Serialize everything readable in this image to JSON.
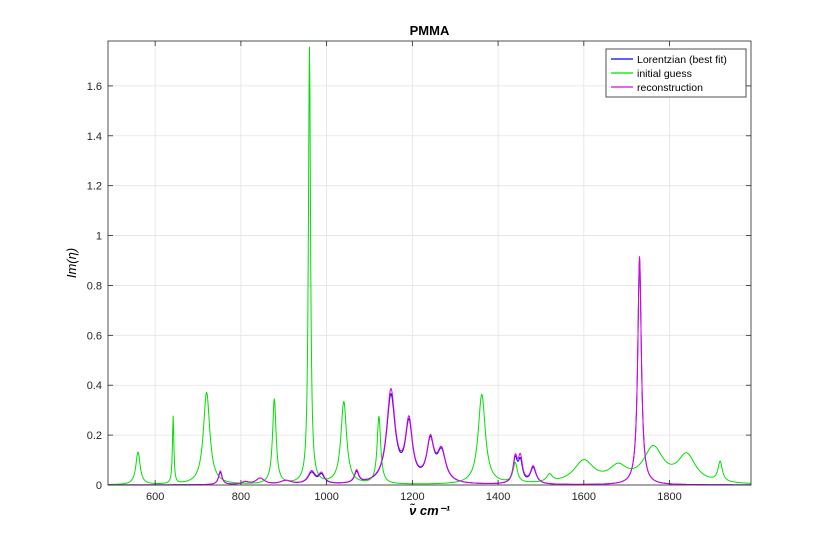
{
  "chart_data": {
    "type": "line",
    "title": "PMMA",
    "xlabel": "ν̃ cm⁻¹",
    "ylabel": "Im(η)",
    "xlim": [
      490,
      1990
    ],
    "ylim": [
      0,
      1.78
    ],
    "xticks": [
      600,
      800,
      1000,
      1200,
      1400,
      1600,
      1800
    ],
    "yticks": [
      0,
      0.2,
      0.4,
      0.6,
      0.8,
      1,
      1.2,
      1.4,
      1.6
    ],
    "ytick_labels": [
      "0",
      "0.2",
      "0.4",
      "0.6",
      "0.8",
      "1",
      "1.2",
      "1.4",
      "1.6"
    ],
    "grid": true,
    "legend_position": "top-right",
    "series": [
      {
        "name": "Lorentzian (best fit)",
        "color": "#0000ff",
        "peaks": [
          [
            752,
            0.05,
            5
          ],
          [
            810,
            0.01,
            10
          ],
          [
            845,
            0.025,
            12
          ],
          [
            905,
            0.015,
            15
          ],
          [
            965,
            0.045,
            10
          ],
          [
            988,
            0.035,
            8
          ],
          [
            1070,
            0.045,
            6
          ],
          [
            1150,
            0.35,
            12
          ],
          [
            1192,
            0.23,
            10
          ],
          [
            1242,
            0.16,
            10
          ],
          [
            1268,
            0.12,
            12
          ],
          [
            1440,
            0.095,
            6
          ],
          [
            1452,
            0.085,
            6
          ],
          [
            1482,
            0.065,
            8
          ],
          [
            1730,
            0.91,
            5
          ]
        ]
      },
      {
        "name": "initial guess",
        "color": "#00e000",
        "peaks": [
          [
            560,
            0.13,
            6
          ],
          [
            642,
            0.27,
            2
          ],
          [
            720,
            0.37,
            9
          ],
          [
            878,
            0.34,
            5
          ],
          [
            960,
            1.75,
            3
          ],
          [
            1040,
            0.33,
            8
          ],
          [
            1122,
            0.27,
            5
          ],
          [
            1362,
            0.36,
            10
          ],
          [
            1440,
            0.08,
            6
          ],
          [
            1520,
            0.03,
            8
          ],
          [
            1600,
            0.09,
            28
          ],
          [
            1680,
            0.06,
            25
          ],
          [
            1762,
            0.14,
            28
          ],
          [
            1840,
            0.11,
            25
          ],
          [
            1918,
            0.08,
            6
          ]
        ]
      },
      {
        "name": "reconstruction",
        "color": "#e000e0",
        "peaks": [
          [
            752,
            0.055,
            5
          ],
          [
            810,
            0.01,
            10
          ],
          [
            845,
            0.025,
            12
          ],
          [
            905,
            0.015,
            15
          ],
          [
            965,
            0.05,
            10
          ],
          [
            988,
            0.04,
            8
          ],
          [
            1070,
            0.05,
            6
          ],
          [
            1150,
            0.37,
            12
          ],
          [
            1192,
            0.24,
            10
          ],
          [
            1242,
            0.165,
            10
          ],
          [
            1268,
            0.125,
            12
          ],
          [
            1440,
            0.1,
            6
          ],
          [
            1452,
            0.1,
            6
          ],
          [
            1482,
            0.07,
            8
          ],
          [
            1730,
            0.915,
            5
          ]
        ]
      }
    ]
  }
}
